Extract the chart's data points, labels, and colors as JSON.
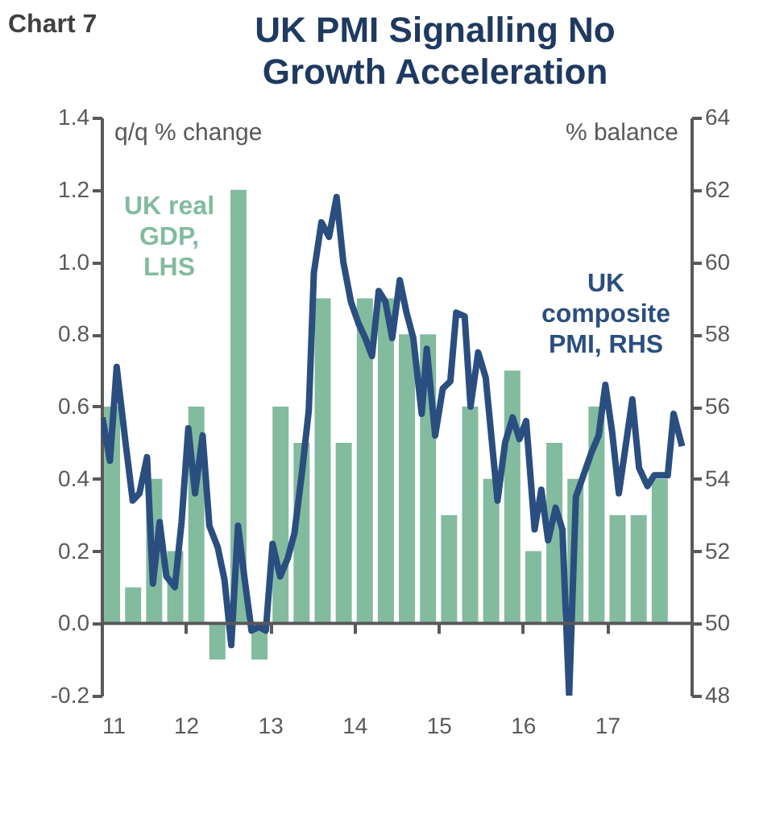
{
  "chart_data": {
    "type": "bar",
    "title": "UK PMI Signalling No\nGrowth Acceleration",
    "ylabel": "q/q % change",
    "y2label": "% balance",
    "annotations": [
      "Chart 7"
    ],
    "xlim": [
      2011,
      2018
    ],
    "xticks": [
      {
        "value": 2011,
        "label": "11"
      },
      {
        "value": 2012,
        "label": "12"
      },
      {
        "value": 2013,
        "label": "13"
      },
      {
        "value": 2014,
        "label": "14"
      },
      {
        "value": 2015,
        "label": "15"
      },
      {
        "value": 2016,
        "label": "16"
      },
      {
        "value": 2017,
        "label": "17"
      }
    ],
    "ylim": [
      -0.2,
      1.4
    ],
    "yticks": [
      -0.2,
      {
        "value": 0,
        "label": "0.0"
      },
      0.2,
      0.4,
      0.6,
      0.8,
      {
        "value": 1,
        "label": "1.0"
      },
      1.2,
      1.4
    ],
    "y2lim": [
      48,
      64
    ],
    "y2ticks": [
      48,
      50,
      52,
      54,
      56,
      58,
      60,
      62,
      64
    ],
    "grid": false,
    "ref_lines": [
      {
        "axis": "y",
        "value": 0,
        "color": "#595959",
        "line_style": "solid"
      }
    ],
    "series": [
      {
        "name": "UK real\nGDP,\nLHS",
        "color": "#83bb9f",
        "x": [
          2011.125,
          2011.375,
          2011.625,
          2011.875,
          2012.125,
          2012.375,
          2012.625,
          2012.875,
          2013.125,
          2013.375,
          2013.625,
          2013.875,
          2014.125,
          2014.375,
          2014.625,
          2014.875,
          2015.125,
          2015.375,
          2015.625,
          2015.875,
          2016.125,
          2016.375,
          2016.625,
          2016.875,
          2017.125,
          2017.375,
          2017.625
        ],
        "values": [
          0.6,
          0.1,
          0.4,
          0.2,
          0.6,
          -0.1,
          1.2,
          -0.1,
          0.6,
          0.5,
          0.9,
          0.5,
          0.9,
          0.9,
          0.8,
          0.8,
          0.3,
          0.6,
          0.4,
          0.7,
          0.2,
          0.5,
          0.4,
          0.6,
          0.3,
          0.3,
          0.4
        ]
      },
      {
        "name": "UK\ncomposite\nPMI, RHS",
        "type": "line",
        "axis": "y2",
        "color": "#2a4e7f",
        "line_style": "solid",
        "marker": "none",
        "x": [
          2011.01,
          2011.1,
          2011.18,
          2011.28,
          2011.37,
          2011.45,
          2011.54,
          2011.61,
          2011.69,
          2011.77,
          2011.87,
          2011.95,
          2012.03,
          2012.11,
          2012.2,
          2012.28,
          2012.38,
          2012.46,
          2012.54,
          2012.62,
          2012.7,
          2012.78,
          2012.87,
          2012.95,
          2013.03,
          2013.12,
          2013.21,
          2013.29,
          2013.38,
          2013.46,
          2013.52,
          2013.61,
          2013.7,
          2013.79,
          2013.87,
          2013.96,
          2014.05,
          2014.13,
          2014.21,
          2014.29,
          2014.37,
          2014.45,
          2014.54,
          2014.62,
          2014.7,
          2014.8,
          2014.86,
          2014.96,
          2015.05,
          2015.14,
          2015.21,
          2015.31,
          2015.38,
          2015.47,
          2015.56,
          2015.7,
          2015.79,
          2015.88,
          2015.96,
          2016.04,
          2016.14,
          2016.22,
          2016.3,
          2016.39,
          2016.47,
          2016.55,
          2016.63,
          2016.72,
          2016.81,
          2016.9,
          2016.98,
          2017.06,
          2017.14,
          2017.22,
          2017.3,
          2017.38,
          2017.48,
          2017.56,
          2017.64,
          2017.72,
          2017.79,
          2017.89
        ],
        "values": [
          55.7,
          54.5,
          57.1,
          55.1,
          53.4,
          53.6,
          54.6,
          51.1,
          52.8,
          51.3,
          51.0,
          52.8,
          55.4,
          53.6,
          55.2,
          52.7,
          52.1,
          51.2,
          49.4,
          52.7,
          51.2,
          49.8,
          49.9,
          49.8,
          52.2,
          51.3,
          51.8,
          52.5,
          54.2,
          55.9,
          59.7,
          61.1,
          60.7,
          61.8,
          60.0,
          58.9,
          58.3,
          57.9,
          57.4,
          59.2,
          58.9,
          57.9,
          59.5,
          58.6,
          57.9,
          55.8,
          57.6,
          55.2,
          56.5,
          56.7,
          58.6,
          58.5,
          56.0,
          57.5,
          56.8,
          53.4,
          55.0,
          55.7,
          55.1,
          55.6,
          52.6,
          53.7,
          52.3,
          53.2,
          52.6,
          48.0,
          53.5,
          54.1,
          54.7,
          55.2,
          56.6,
          55.3,
          53.6,
          54.9,
          56.2,
          54.3,
          53.8,
          54.1,
          54.1,
          54.1,
          55.8,
          54.9
        ]
      }
    ]
  }
}
